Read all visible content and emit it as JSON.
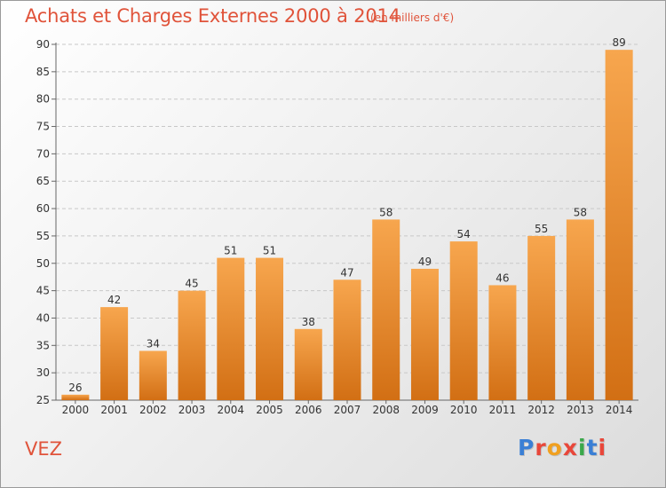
{
  "header": {
    "title": "Achats et Charges Externes 2000 à 2014",
    "subtitle": "(en milliers d'€)"
  },
  "footer": {
    "commune": "VEZ",
    "logo_text": "Proxiti"
  },
  "colors": {
    "bar_light": "#f7a64e",
    "bar_dark": "#d26f14",
    "title": "#e0533a",
    "logo": [
      "#3a7fd5",
      "#e8473a",
      "#f0a020",
      "#e8473a",
      "#3aa84a",
      "#3a7fd5",
      "#e8473a"
    ]
  },
  "chart_data": {
    "type": "bar",
    "title": "Achats et Charges Externes 2000 à 2014",
    "categories": [
      "2000",
      "2001",
      "2002",
      "2003",
      "2004",
      "2005",
      "2006",
      "2007",
      "2008",
      "2009",
      "2010",
      "2011",
      "2012",
      "2013",
      "2014"
    ],
    "values": [
      26,
      42,
      34,
      45,
      51,
      51,
      38,
      47,
      58,
      49,
      54,
      46,
      55,
      58,
      89
    ],
    "ylim": [
      25,
      90
    ],
    "yticks": [
      25,
      30,
      35,
      40,
      45,
      50,
      55,
      60,
      65,
      70,
      75,
      80,
      85,
      90
    ],
    "grid": "horizontal dashed",
    "data_labels": true
  }
}
